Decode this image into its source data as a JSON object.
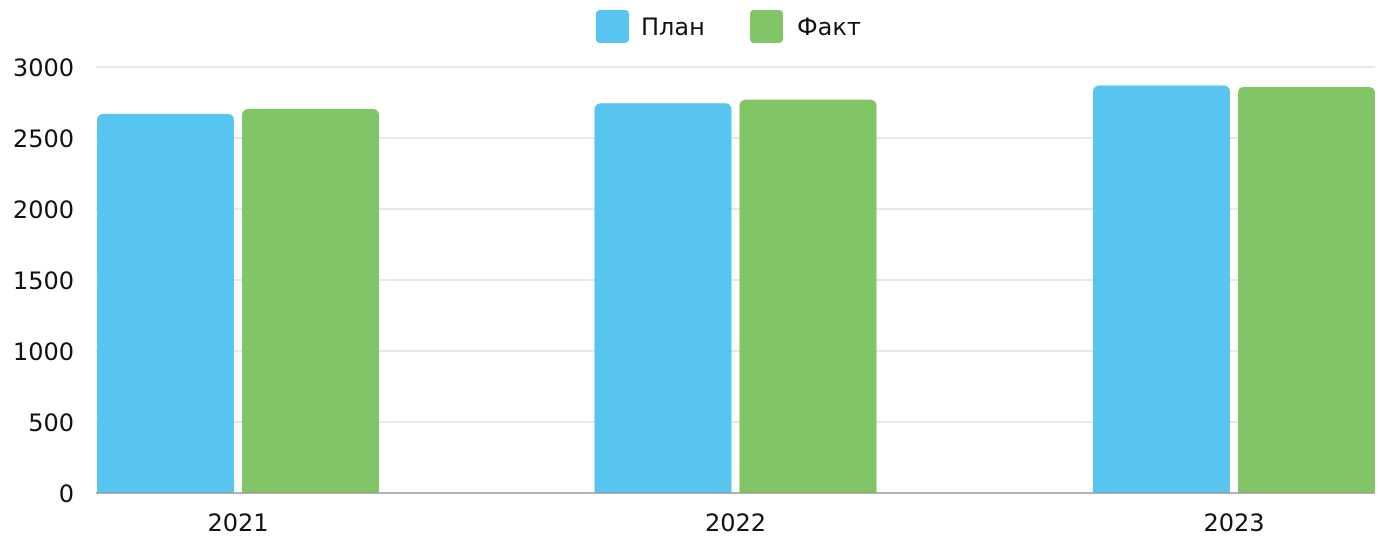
{
  "chart_data": {
    "type": "bar",
    "categories": [
      "2021",
      "2022",
      "2023"
    ],
    "series": [
      {
        "name": "План",
        "values": [
          2670,
          2745,
          2870
        ],
        "color": "#57C5F0"
      },
      {
        "name": "Факт",
        "values": [
          2705,
          2770,
          2860
        ],
        "color": "#81C566"
      }
    ],
    "y_ticks": [
      "0",
      "500",
      "1000",
      "1500",
      "2000",
      "2500",
      "3000"
    ],
    "ylim": [
      0,
      3000
    ],
    "grid": true,
    "legend_position": "top-center",
    "colors": {
      "grid": "#D0D0D0",
      "axis": "#9A9A9A",
      "text": "#111111"
    }
  }
}
